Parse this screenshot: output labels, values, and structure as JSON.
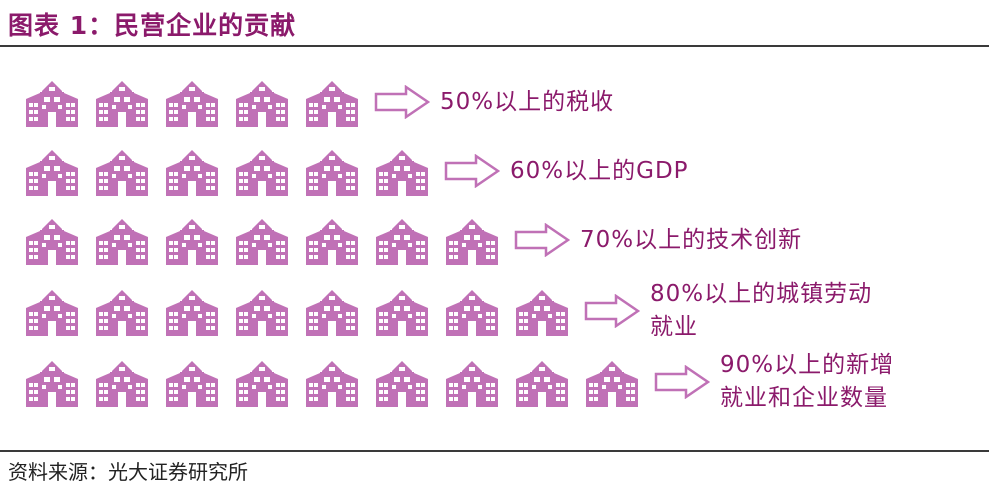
{
  "title": "图表 1：民营企业的贡献",
  "source": "资料来源：光大证券研究所",
  "colors": {
    "accent": "#8b1a6b",
    "icon": "#c071b6"
  },
  "rows": [
    {
      "buildings": 5,
      "label_line1": "50%以上的税收",
      "label_line2": ""
    },
    {
      "buildings": 6,
      "label_line1": "60%以上的GDP",
      "label_line2": ""
    },
    {
      "buildings": 7,
      "label_line1": "70%以上的技术创新",
      "label_line2": ""
    },
    {
      "buildings": 8,
      "label_line1": "80%以上的城镇劳动",
      "label_line2": "就业"
    },
    {
      "buildings": 9,
      "label_line1": "90%以上的新增",
      "label_line2": "就业和企业数量"
    }
  ]
}
